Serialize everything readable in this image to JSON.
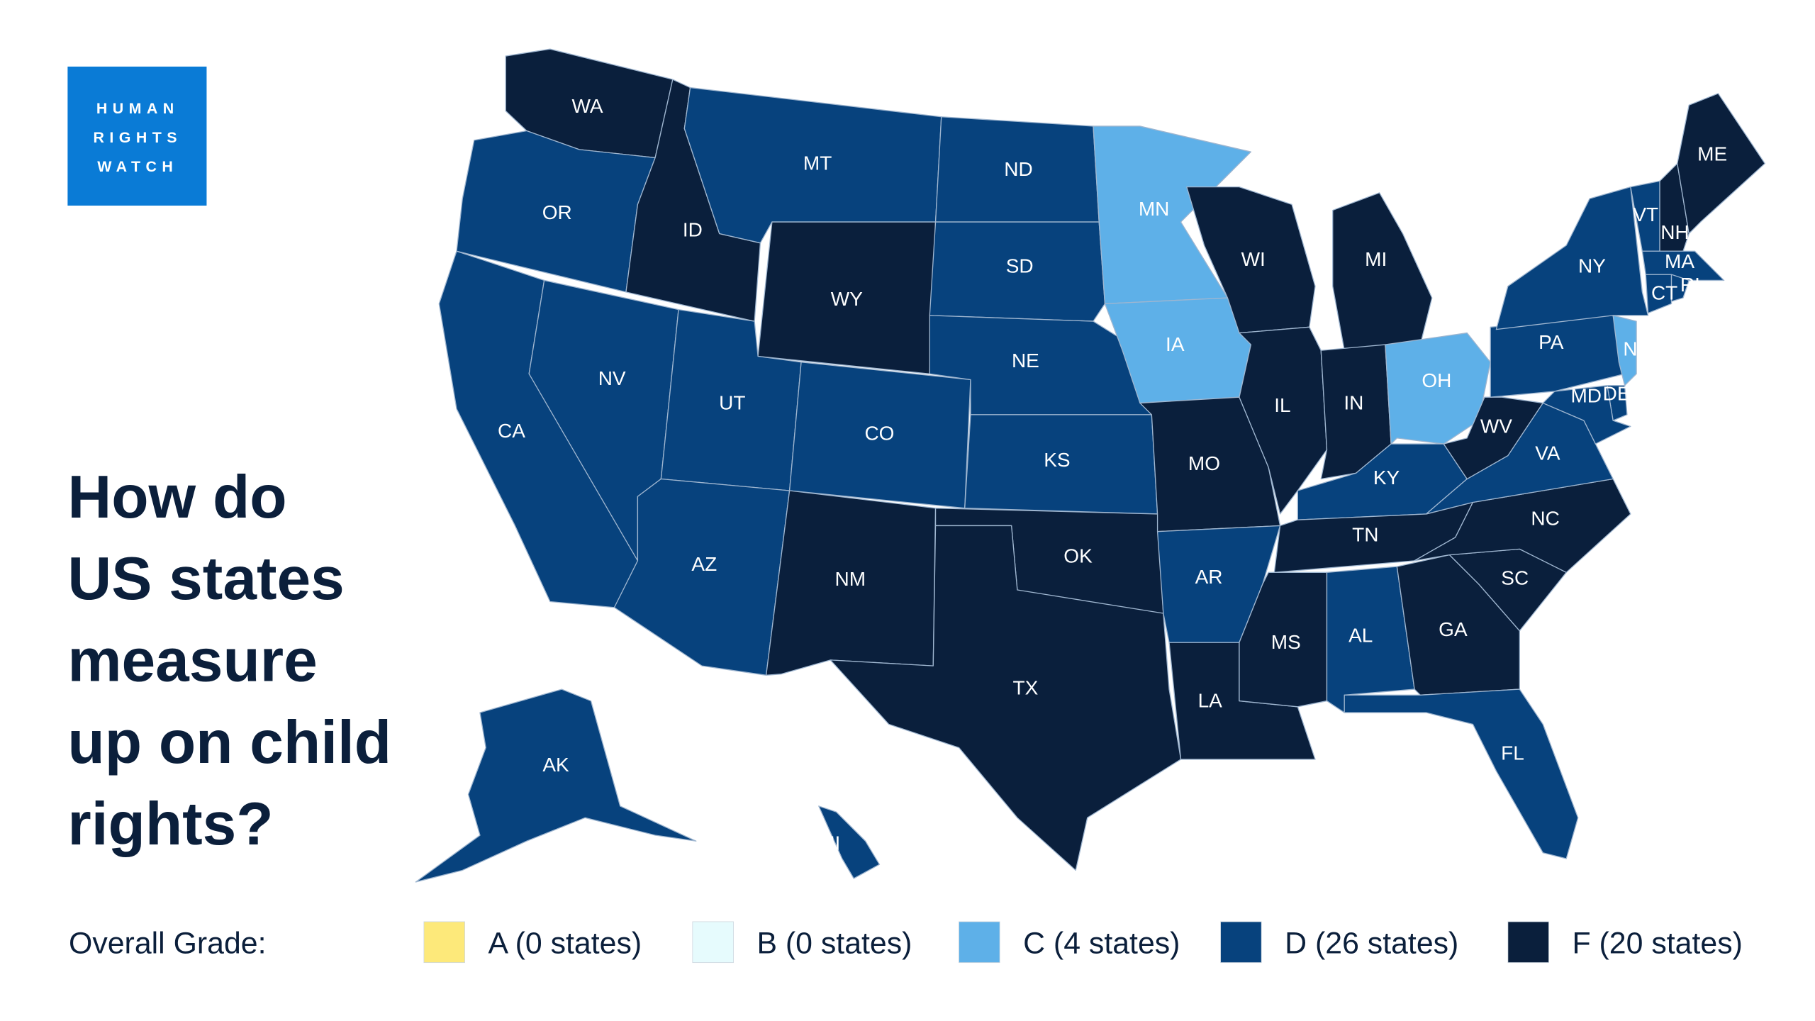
{
  "logo": [
    "HUMAN",
    "RIGHTS",
    "WATCH"
  ],
  "title": [
    "How do",
    "US states",
    "measure",
    "up on child",
    "rights?"
  ],
  "legend": {
    "label": "Overall Grade:",
    "items": [
      {
        "grade": "A",
        "text": "A (0 states)",
        "color": "#fde97a"
      },
      {
        "grade": "B",
        "text": "B (0 states)",
        "color": "#e6fbfd"
      },
      {
        "grade": "C",
        "text": "C (4 states)",
        "color": "#5eb0e8"
      },
      {
        "grade": "D",
        "text": "D (26 states)",
        "color": "#07427d"
      },
      {
        "grade": "F",
        "text": "F (20 states)",
        "color": "#0a1f3c"
      }
    ]
  },
  "states": [
    {
      "label": "WA",
      "grade": "F"
    },
    {
      "label": "OR",
      "grade": "D"
    },
    {
      "label": "CA",
      "grade": "D"
    },
    {
      "label": "NV",
      "grade": "D"
    },
    {
      "label": "ID",
      "grade": "F"
    },
    {
      "label": "MT",
      "grade": "D"
    },
    {
      "label": "WY",
      "grade": "F"
    },
    {
      "label": "UT",
      "grade": "D"
    },
    {
      "label": "CO",
      "grade": "D"
    },
    {
      "label": "AZ",
      "grade": "D"
    },
    {
      "label": "NM",
      "grade": "F"
    },
    {
      "label": "ND",
      "grade": "D"
    },
    {
      "label": "SD",
      "grade": "D"
    },
    {
      "label": "NE",
      "grade": "D"
    },
    {
      "label": "KS",
      "grade": "D"
    },
    {
      "label": "OK",
      "grade": "F"
    },
    {
      "label": "TX",
      "grade": "F"
    },
    {
      "label": "MN",
      "grade": "C"
    },
    {
      "label": "IA",
      "grade": "C"
    },
    {
      "label": "MO",
      "grade": "F"
    },
    {
      "label": "AR",
      "grade": "D"
    },
    {
      "label": "LA",
      "grade": "F"
    },
    {
      "label": "WI",
      "grade": "F"
    },
    {
      "label": "IL",
      "grade": "F"
    },
    {
      "label": "MI",
      "grade": "F"
    },
    {
      "label": "IN",
      "grade": "F"
    },
    {
      "label": "OH",
      "grade": "C"
    },
    {
      "label": "KY",
      "grade": "D"
    },
    {
      "label": "TN",
      "grade": "F"
    },
    {
      "label": "MS",
      "grade": "F"
    },
    {
      "label": "AL",
      "grade": "D"
    },
    {
      "label": "GA",
      "grade": "F"
    },
    {
      "label": "FL",
      "grade": "D"
    },
    {
      "label": "SC",
      "grade": "F"
    },
    {
      "label": "NC",
      "grade": "F"
    },
    {
      "label": "VA",
      "grade": "D"
    },
    {
      "label": "WV",
      "grade": "F"
    },
    {
      "label": "PA",
      "grade": "D"
    },
    {
      "label": "NY",
      "grade": "D"
    },
    {
      "label": "NJ",
      "grade": "C"
    },
    {
      "label": "DE",
      "grade": "D"
    },
    {
      "label": "MD",
      "grade": "D"
    },
    {
      "label": "VT",
      "grade": "D"
    },
    {
      "label": "NH",
      "grade": "F"
    },
    {
      "label": "ME",
      "grade": "F"
    },
    {
      "label": "MA",
      "grade": "D"
    },
    {
      "label": "CT",
      "grade": "D"
    },
    {
      "label": "RI",
      "grade": "D"
    },
    {
      "label": "AK",
      "grade": "D"
    },
    {
      "label": "HI",
      "grade": "D"
    }
  ]
}
